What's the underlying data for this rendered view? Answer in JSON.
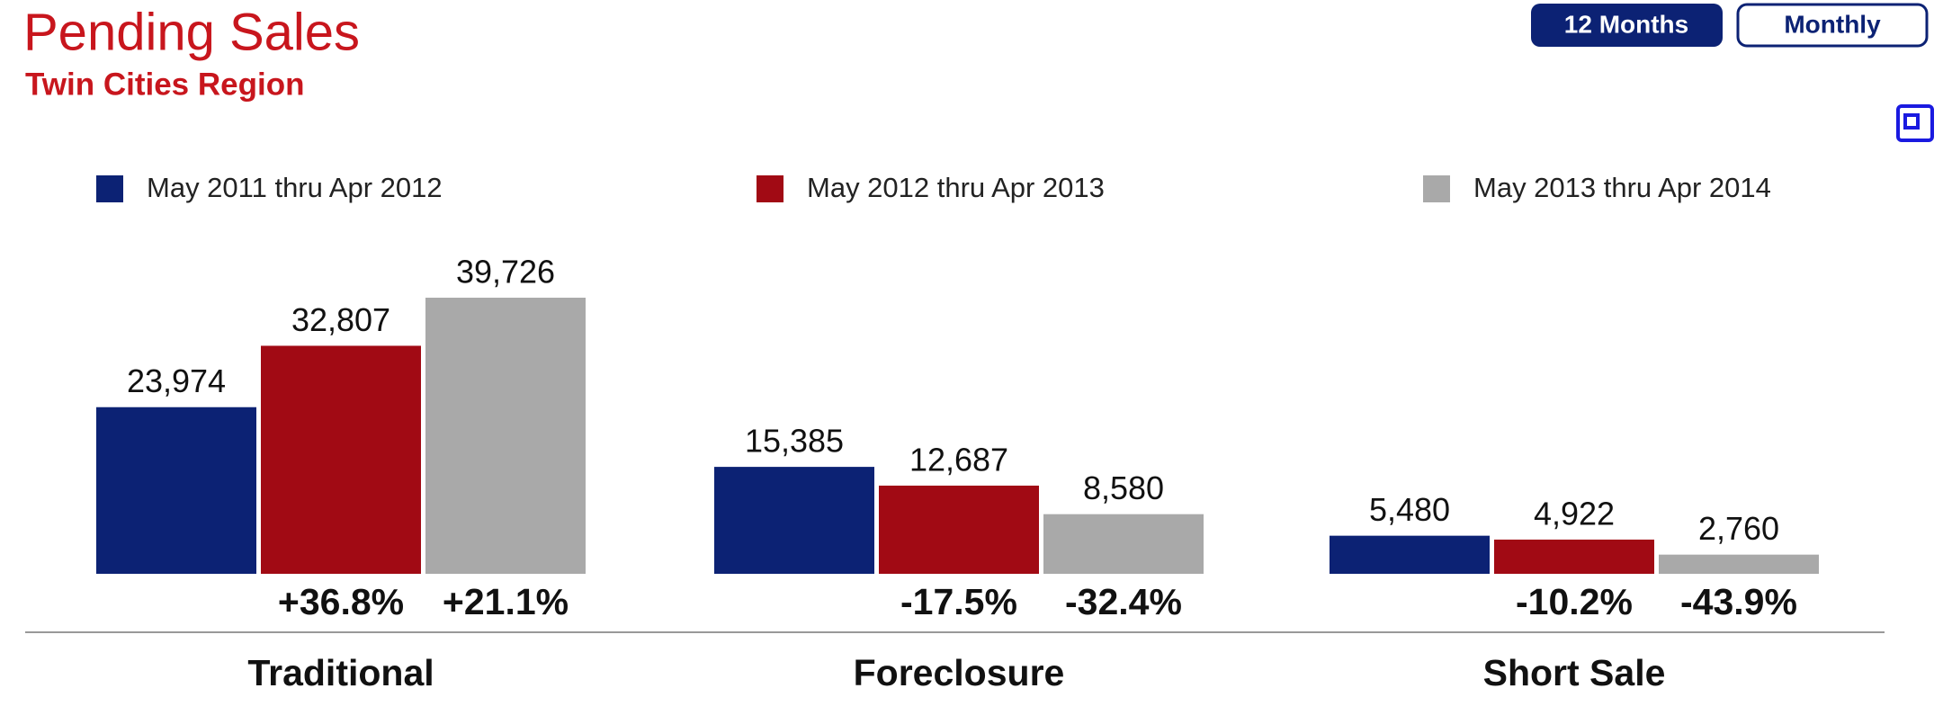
{
  "chart_data": {
    "type": "bar",
    "title": "Pending Sales",
    "subtitle": "Twin Cities Region",
    "buttons": [
      "12 Months",
      "Monthly"
    ],
    "categories": [
      "Traditional",
      "Foreclosure",
      "Short Sale"
    ],
    "series": [
      {
        "name": "May 2011 thru Apr 2012",
        "color": "#0c2274",
        "values": [
          23974,
          15385,
          5480
        ],
        "value_labels": [
          "23,974",
          "15,385",
          "5,480"
        ]
      },
      {
        "name": "May 2012 thru Apr 2013",
        "color": "#a10a14",
        "values": [
          32807,
          12687,
          4922
        ],
        "value_labels": [
          "32,807",
          "12,687",
          "4,922"
        ],
        "change_labels": [
          "+36.8%",
          "-17.5%",
          "-10.2%"
        ]
      },
      {
        "name": "May 2013 thru Apr 2014",
        "color": "#a9a9a9",
        "values": [
          39726,
          8580,
          2760
        ],
        "value_labels": [
          "39,726",
          "8,580",
          "2,760"
        ],
        "change_labels": [
          "+21.1%",
          "-32.4%",
          "-43.9%"
        ]
      }
    ]
  }
}
